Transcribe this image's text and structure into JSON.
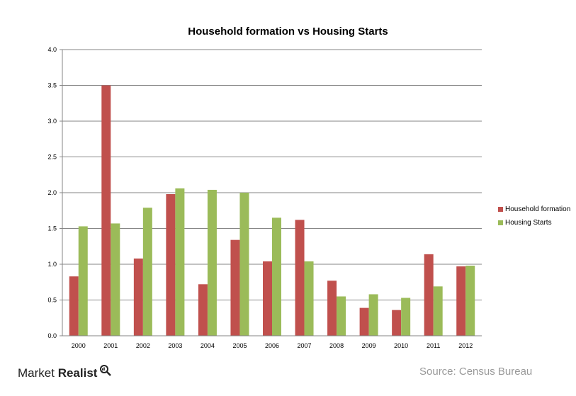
{
  "chart_data": {
    "type": "bar",
    "title": "Household formation vs Housing Starts",
    "categories": [
      "2000",
      "2001",
      "2002",
      "2003",
      "2004",
      "2005",
      "2006",
      "2007",
      "2008",
      "2009",
      "2010",
      "2011",
      "2012"
    ],
    "series": [
      {
        "name": "Household formation",
        "color": "#c0504d",
        "values": [
          0.83,
          3.5,
          1.08,
          1.98,
          0.72,
          1.34,
          1.04,
          1.62,
          0.77,
          0.39,
          0.36,
          1.14,
          0.97
        ]
      },
      {
        "name": "Housing Starts",
        "color": "#9bbb59",
        "values": [
          1.53,
          1.57,
          1.79,
          2.06,
          2.04,
          2.0,
          1.65,
          1.04,
          0.55,
          0.58,
          0.53,
          0.69,
          0.98
        ]
      }
    ],
    "yticks": [
      "0.0",
      "0.5",
      "1.0",
      "1.5",
      "2.0",
      "2.5",
      "3.0",
      "3.5",
      "4.0"
    ],
    "ylim": [
      0,
      4.0
    ],
    "grid": true,
    "legend_position": "right"
  },
  "footer": {
    "brand_part1": "Market",
    "brand_part2": "Realist",
    "source": "Source: Census Bureau"
  }
}
